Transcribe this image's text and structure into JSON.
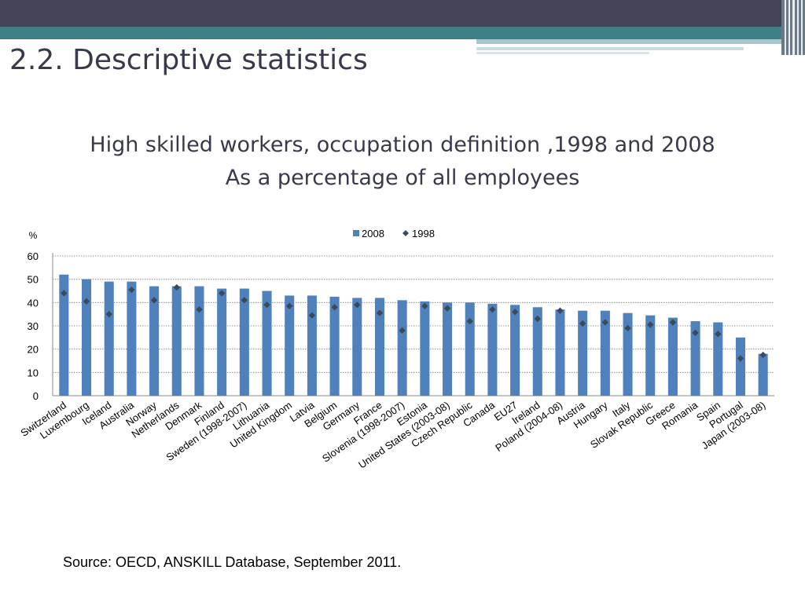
{
  "slide": {
    "title": "2.2. Descriptive statistics",
    "chart_title_line1": "High skilled workers, occupation definition ,1998 and 2008",
    "chart_title_line2": "As a percentage of all employees",
    "source": "Source: OECD, ANSKILL Database, September 2011."
  },
  "colors": {
    "header_bar": "#434556",
    "accent_band": "#3f7f86",
    "bar_2008": "#4f81bd",
    "marker_1998": "#3b4a5a",
    "text": "#38394a"
  },
  "chart_data": {
    "type": "bar",
    "ylabel": "%",
    "ylim": [
      0,
      60
    ],
    "yticks": [
      0,
      10,
      20,
      30,
      40,
      50,
      60
    ],
    "grid": true,
    "legend_position": "top",
    "categories": [
      "Switzerland",
      "Luxembourg",
      "Iceland",
      "Australia",
      "Norway",
      "Netherlands",
      "Denmark",
      "Finland",
      "Sweden (1998-2007)",
      "Lithuania",
      "United Kingdom",
      "Latvia",
      "Belgium",
      "Germany",
      "France",
      "Slovenia (1998-2007)",
      "Estonia",
      "United States (2003-08)",
      "Czech Republic",
      "Canada",
      "EU27",
      "Ireland",
      "Poland (2004-08)",
      "Austria",
      "Hungary",
      "Italy",
      "Slovak Republic",
      "Greece",
      "Romania",
      "Spain",
      "Portugal",
      "Japan (2003-08)"
    ],
    "series": [
      {
        "name": "2008",
        "style": "bar",
        "values": [
          52,
          50,
          49,
          49,
          47,
          47,
          47,
          46,
          46,
          45,
          43,
          43,
          42.5,
          42,
          42,
          41,
          40.5,
          40,
          40,
          39.5,
          39,
          38,
          37,
          36.5,
          36.5,
          35.5,
          34.5,
          33.5,
          32,
          31.5,
          25,
          18
        ]
      },
      {
        "name": "1998",
        "style": "marker",
        "values": [
          44,
          40.5,
          35,
          45.5,
          41,
          46.5,
          37,
          44,
          41,
          39,
          38.5,
          34.5,
          38,
          39,
          35.5,
          28,
          38.5,
          37.5,
          32,
          37,
          36,
          33,
          36.5,
          31,
          31.5,
          29,
          30.5,
          31.5,
          27,
          26.5,
          16,
          17.5
        ]
      }
    ]
  }
}
